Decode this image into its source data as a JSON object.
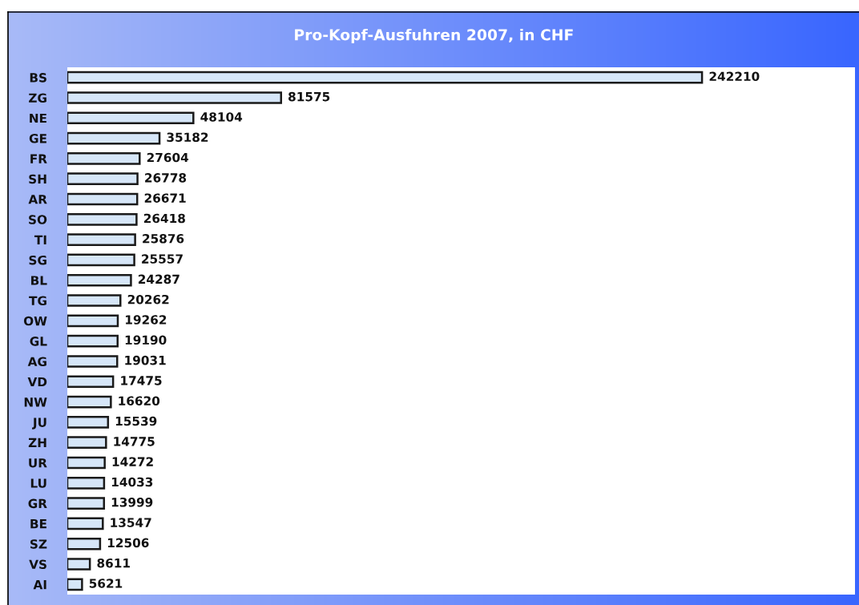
{
  "chart_data": {
    "type": "bar",
    "orientation": "horizontal",
    "title": "Pro-Kopf-Ausfuhren 2007, in CHF",
    "categories": [
      "BS",
      "ZG",
      "NE",
      "GE",
      "FR",
      "SH",
      "AR",
      "SO",
      "TI",
      "SG",
      "BL",
      "TG",
      "OW",
      "GL",
      "AG",
      "VD",
      "NW",
      "JU",
      "ZH",
      "UR",
      "LU",
      "GR",
      "BE",
      "SZ",
      "VS",
      "AI"
    ],
    "values": [
      242210,
      81575,
      48104,
      35182,
      27604,
      26778,
      26671,
      26418,
      25876,
      25557,
      24287,
      20262,
      19262,
      19190,
      19031,
      17475,
      16620,
      15539,
      14775,
      14272,
      14033,
      13999,
      13547,
      12506,
      8611,
      5621
    ],
    "color": "#d6e6f8",
    "data_labels": true,
    "tick_labels": "y"
  }
}
